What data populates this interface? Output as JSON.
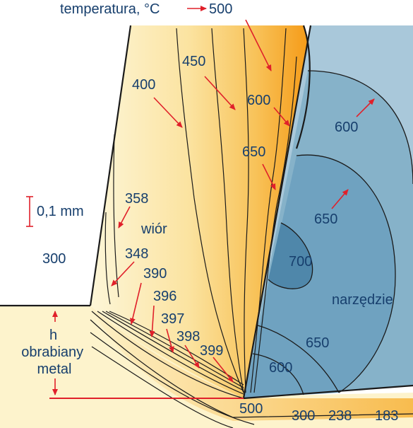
{
  "title": "temperatura, °C",
  "scale_label": "0,1 mm",
  "region_labels": {
    "chip": "wiór",
    "tool": "narzędzie",
    "workpiece": "obrabiany\nmetal",
    "h": "h"
  },
  "chip_isotherms": [
    "500",
    "450",
    "400",
    "600",
    "650",
    "358",
    "348",
    "390",
    "396",
    "397",
    "398",
    "399",
    "300"
  ],
  "tool_isotherms": [
    "600",
    "650",
    "700",
    "650",
    "600"
  ],
  "bottom_isotherms": [
    "500",
    "300",
    "238",
    "183"
  ],
  "colors": {
    "text": "#173f6d",
    "arrow": "#e0202a",
    "line": "#1a1a1a",
    "tool_light": "#a9c8da",
    "tool_mid": "#86b2c9",
    "tool_dark": "#5c95b5",
    "chip_light": "#fdf3cc",
    "chip_orange": "#f7a01c"
  }
}
